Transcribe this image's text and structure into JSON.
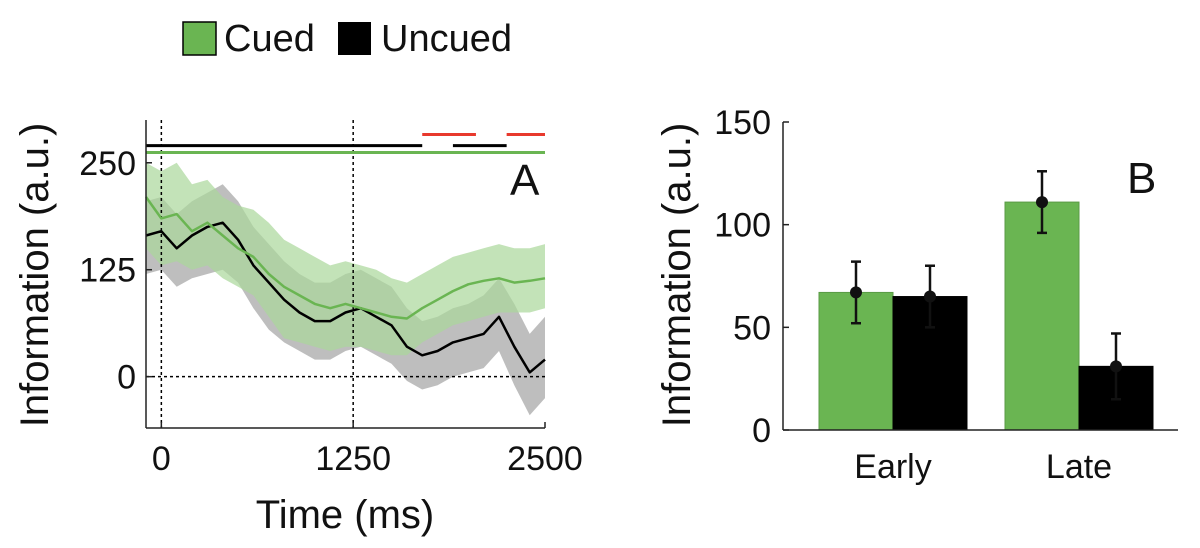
{
  "legend": {
    "items": [
      {
        "label": "Cued",
        "color": "#6ab552"
      },
      {
        "label": "Uncued",
        "color": "#000000"
      }
    ]
  },
  "colors": {
    "cued": "#6ab552",
    "cued_band": "#aad79a",
    "uncued": "#000000",
    "uncued_band": "#b3b3b3",
    "significance_red": "#e8392d"
  },
  "chart_data": [
    {
      "type": "line",
      "panel_label": "A",
      "xlabel": "Time (ms)",
      "ylabel": "Information (a.u.)",
      "xlim": [
        -100,
        2500
      ],
      "ylim": [
        -60,
        300
      ],
      "xticks": [
        0,
        1250,
        2500
      ],
      "yticks": [
        0,
        125,
        250
      ],
      "xtick_labels": [
        "0",
        "1250",
        "2500"
      ],
      "ytick_labels": [
        "0",
        "125",
        "250"
      ],
      "reference_lines": {
        "vertical_x": [
          0,
          1250
        ],
        "horizontal_y": [
          0
        ]
      },
      "x": [
        -100,
        0,
        100,
        200,
        300,
        400,
        500,
        600,
        700,
        800,
        900,
        1000,
        1100,
        1200,
        1300,
        1400,
        1500,
        1600,
        1700,
        1800,
        1900,
        2000,
        2100,
        2200,
        2300,
        2400,
        2500
      ],
      "series": [
        {
          "name": "Cued",
          "values": [
            210,
            185,
            190,
            170,
            180,
            165,
            150,
            140,
            120,
            105,
            95,
            85,
            80,
            85,
            80,
            75,
            70,
            68,
            80,
            90,
            100,
            108,
            112,
            115,
            110,
            112,
            115
          ],
          "lower": [
            150,
            130,
            135,
            125,
            130,
            115,
            105,
            95,
            70,
            45,
            40,
            35,
            30,
            35,
            35,
            30,
            25,
            25,
            40,
            50,
            60,
            65,
            70,
            75,
            75,
            75,
            80
          ],
          "upper": [
            250,
            240,
            250,
            225,
            230,
            210,
            200,
            195,
            180,
            160,
            150,
            140,
            130,
            135,
            130,
            125,
            115,
            110,
            120,
            130,
            140,
            145,
            150,
            155,
            150,
            150,
            155
          ]
        },
        {
          "name": "Uncued",
          "values": [
            165,
            170,
            150,
            165,
            175,
            180,
            160,
            130,
            110,
            90,
            75,
            65,
            65,
            75,
            80,
            70,
            60,
            35,
            25,
            30,
            40,
            45,
            50,
            70,
            35,
            5,
            20
          ],
          "lower": [
            120,
            125,
            105,
            115,
            120,
            125,
            110,
            80,
            55,
            40,
            30,
            20,
            20,
            30,
            35,
            25,
            15,
            -5,
            -15,
            -10,
            0,
            5,
            10,
            30,
            -10,
            -45,
            -25
          ],
          "upper": [
            205,
            210,
            190,
            205,
            215,
            225,
            205,
            175,
            155,
            135,
            120,
            110,
            110,
            120,
            125,
            115,
            105,
            80,
            65,
            70,
            80,
            85,
            95,
            115,
            85,
            50,
            70
          ]
        }
      ],
      "significance_bars": [
        {
          "y": 270,
          "start": -100,
          "end": 1700,
          "color": "black"
        },
        {
          "y": 270,
          "start": 1900,
          "end": 2250,
          "color": "black"
        },
        {
          "y": 283,
          "start": 1700,
          "end": 2050,
          "color": "red"
        },
        {
          "y": 283,
          "start": 2250,
          "end": 2500,
          "color": "red"
        },
        {
          "y": 262,
          "start": -100,
          "end": 2500,
          "color": "green"
        }
      ]
    },
    {
      "type": "bar",
      "panel_label": "B",
      "xlabel": "",
      "ylabel": "Information (a.u.)",
      "ylim": [
        0,
        150
      ],
      "yticks": [
        0,
        50,
        100,
        150
      ],
      "ytick_labels": [
        "0",
        "50",
        "100",
        "150"
      ],
      "categories": [
        "Early",
        "Late"
      ],
      "series": [
        {
          "name": "Cued",
          "values": [
            67,
            111
          ],
          "errors": [
            15,
            15
          ]
        },
        {
          "name": "Uncued",
          "values": [
            65,
            31
          ],
          "errors": [
            15,
            16
          ]
        }
      ]
    }
  ]
}
